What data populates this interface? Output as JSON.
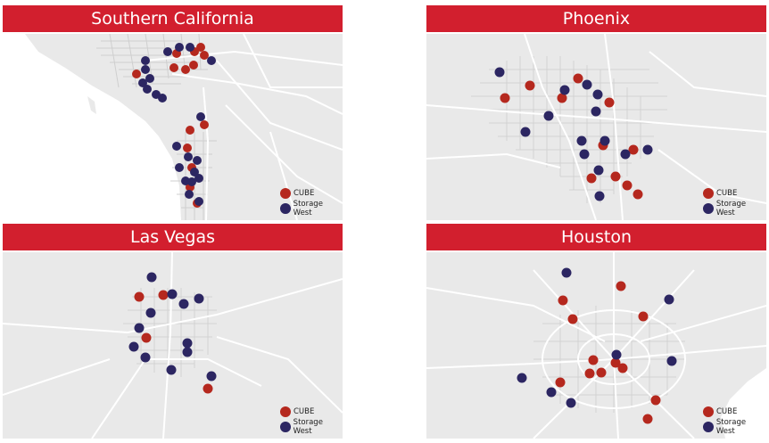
{
  "colors": {
    "cube": "#b5281e",
    "storage_west": "#2c2662",
    "header": "#d21f2e",
    "land": "#e9e9e9",
    "water": "#ffffff",
    "road": "#ffffff"
  },
  "legend": {
    "cube": "CUBE",
    "storage_west": "Storage West"
  },
  "panels": [
    {
      "title": "Southern California"
    },
    {
      "title": "Phoenix"
    },
    {
      "title": "Las Vegas"
    },
    {
      "title": "Houston"
    }
  ]
}
